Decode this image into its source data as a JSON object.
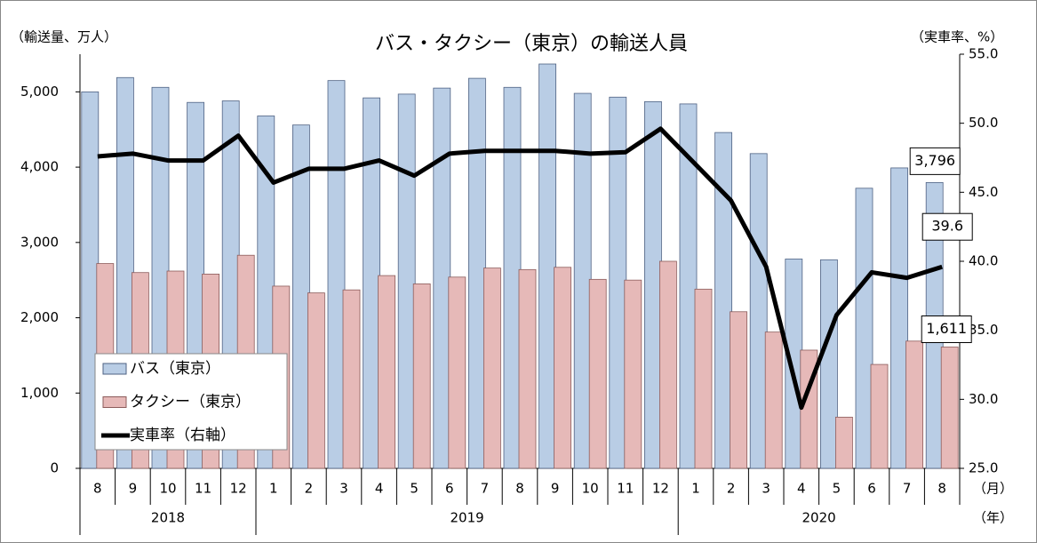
{
  "chart_data": {
    "type": "bar-line",
    "title": "バス・タクシー（東京）の輸送人員",
    "y_label": "（輸送量、万人）",
    "y2_label": "（実車率、%）",
    "x_label": "（月）",
    "x_group_label": "（年）",
    "categories": [
      "8",
      "9",
      "10",
      "11",
      "12",
      "1",
      "2",
      "3",
      "4",
      "5",
      "6",
      "7",
      "8",
      "9",
      "10",
      "11",
      "12",
      "1",
      "2",
      "3",
      "4",
      "5",
      "6",
      "7",
      "8"
    ],
    "years": [
      "2018",
      "2018",
      "2018",
      "2018",
      "2018",
      "2019",
      "2019",
      "2019",
      "2019",
      "2019",
      "2019",
      "2019",
      "2019",
      "2019",
      "2019",
      "2019",
      "2019",
      "2020",
      "2020",
      "2020",
      "2020",
      "2020",
      "2020",
      "2020",
      "2020"
    ],
    "series": [
      {
        "name": "バス（東京）",
        "type": "bar",
        "color": "#b9cde5",
        "values": [
          5000,
          5190,
          5060,
          4860,
          4880,
          4680,
          4560,
          5150,
          4920,
          4970,
          5050,
          5180,
          5060,
          5370,
          4980,
          4930,
          4870,
          4840,
          4460,
          4180,
          2780,
          2770,
          3720,
          3990,
          3796
        ],
        "value_labels": [
          null,
          null,
          null,
          null,
          null,
          null,
          null,
          null,
          null,
          null,
          null,
          null,
          null,
          null,
          null,
          null,
          null,
          null,
          null,
          null,
          null,
          null,
          null,
          null,
          "3,796"
        ]
      },
      {
        "name": "タクシー（東京）",
        "type": "bar",
        "color": "#e6b9b8",
        "values": [
          2720,
          2600,
          2620,
          2580,
          2830,
          2420,
          2330,
          2370,
          2560,
          2450,
          2540,
          2660,
          2640,
          2670,
          2510,
          2500,
          2750,
          2380,
          2080,
          1810,
          1570,
          680,
          1380,
          1690,
          1611
        ],
        "value_labels": [
          null,
          null,
          null,
          null,
          null,
          null,
          null,
          null,
          null,
          null,
          null,
          null,
          null,
          null,
          null,
          null,
          null,
          null,
          null,
          null,
          null,
          null,
          null,
          null,
          "1,611"
        ]
      },
      {
        "name": "実車率（右軸）",
        "type": "line",
        "axis": "y2",
        "color": "#000000",
        "values": [
          47.6,
          47.8,
          47.3,
          47.3,
          49.1,
          45.7,
          46.7,
          46.7,
          47.3,
          46.2,
          47.8,
          48.0,
          48.0,
          48.0,
          47.8,
          47.9,
          49.6,
          47.0,
          44.4,
          39.6,
          29.4,
          36.1,
          39.2,
          38.8,
          39.6
        ],
        "value_labels": [
          null,
          null,
          null,
          null,
          null,
          null,
          null,
          null,
          null,
          null,
          null,
          null,
          null,
          null,
          null,
          null,
          null,
          null,
          null,
          null,
          null,
          null,
          null,
          null,
          "39.6"
        ]
      }
    ],
    "ylim": [
      0,
      5500
    ],
    "yticks": [
      0,
      {
        "value": 1000,
        "label": "1,000"
      },
      {
        "value": 2000,
        "label": "2,000"
      },
      {
        "value": 3000,
        "label": "3,000"
      },
      {
        "value": 4000,
        "label": "4,000"
      },
      {
        "value": 5000,
        "label": "5,000"
      }
    ],
    "y2lim": [
      25,
      55
    ],
    "y2ticks": [
      {
        "value": 25,
        "label": "25.0"
      },
      {
        "value": 30,
        "label": "30.0"
      },
      {
        "value": 35,
        "label": "35.0"
      },
      {
        "value": 40,
        "label": "40.0"
      },
      {
        "value": 45,
        "label": "45.0"
      },
      {
        "value": 50,
        "label": "50.0"
      },
      {
        "value": 55,
        "label": "55.0"
      }
    ],
    "legend": "lower left"
  }
}
